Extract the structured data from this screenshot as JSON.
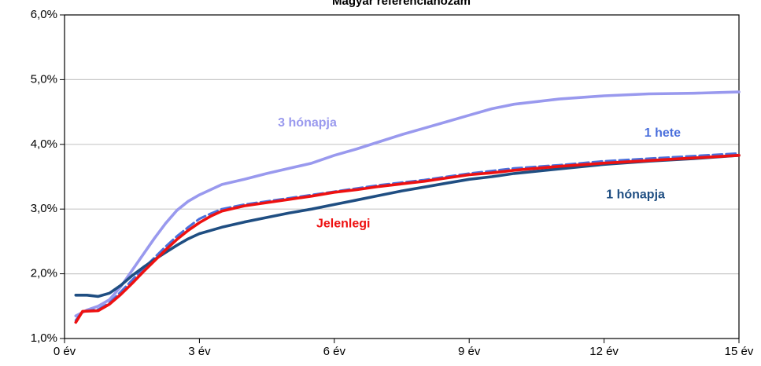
{
  "chart_data": {
    "type": "line",
    "title": "Magyar referenciahozam",
    "xlabel": "",
    "ylabel": "",
    "xlim": [
      0,
      15
    ],
    "ylim": [
      1.0,
      6.0
    ],
    "x_ticks": [
      {
        "value": 0,
        "label": "0 év"
      },
      {
        "value": 3,
        "label": "3 év"
      },
      {
        "value": 6,
        "label": "6 év"
      },
      {
        "value": 9,
        "label": "9 év"
      },
      {
        "value": 12,
        "label": "12 év"
      },
      {
        "value": 15,
        "label": "15 év"
      }
    ],
    "y_ticks": [
      {
        "value": 1.0,
        "label": "1,0%"
      },
      {
        "value": 2.0,
        "label": "2,0%"
      },
      {
        "value": 3.0,
        "label": "3,0%"
      },
      {
        "value": 4.0,
        "label": "4,0%"
      },
      {
        "value": 5.0,
        "label": "5,0%"
      },
      {
        "value": 6.0,
        "label": "6,0%"
      }
    ],
    "grid": {
      "horizontal": true,
      "vertical": false
    },
    "legend": "inline labels",
    "series": [
      {
        "name": "3 hónapja",
        "color": "#9999ee",
        "dash": false,
        "label_at": [
          5.4,
          4.33
        ],
        "points": [
          [
            0.25,
            1.35
          ],
          [
            0.5,
            1.44
          ],
          [
            0.75,
            1.5
          ],
          [
            1.0,
            1.6
          ],
          [
            1.25,
            1.8
          ],
          [
            1.5,
            2.05
          ],
          [
            1.75,
            2.3
          ],
          [
            2.0,
            2.55
          ],
          [
            2.25,
            2.78
          ],
          [
            2.5,
            2.98
          ],
          [
            2.75,
            3.12
          ],
          [
            3.0,
            3.22
          ],
          [
            3.25,
            3.3
          ],
          [
            3.5,
            3.38
          ],
          [
            4.0,
            3.46
          ],
          [
            4.5,
            3.55
          ],
          [
            5.0,
            3.63
          ],
          [
            5.5,
            3.71
          ],
          [
            6.0,
            3.83
          ],
          [
            6.5,
            3.93
          ],
          [
            7.0,
            4.04
          ],
          [
            7.5,
            4.15
          ],
          [
            8.0,
            4.25
          ],
          [
            8.5,
            4.35
          ],
          [
            9.0,
            4.45
          ],
          [
            9.5,
            4.55
          ],
          [
            10.0,
            4.62
          ],
          [
            11.0,
            4.7
          ],
          [
            12.0,
            4.75
          ],
          [
            13.0,
            4.78
          ],
          [
            14.0,
            4.79
          ],
          [
            15.0,
            4.81
          ]
        ]
      },
      {
        "name": "1 hete",
        "color": "#4a6fdc",
        "dash": true,
        "label_at": [
          13.3,
          4.17
        ],
        "points": [
          [
            0.25,
            1.28
          ],
          [
            0.4,
            1.42
          ],
          [
            0.75,
            1.45
          ],
          [
            1.0,
            1.55
          ],
          [
            1.25,
            1.72
          ],
          [
            1.5,
            1.9
          ],
          [
            1.75,
            2.08
          ],
          [
            2.0,
            2.25
          ],
          [
            2.25,
            2.42
          ],
          [
            2.5,
            2.58
          ],
          [
            2.75,
            2.72
          ],
          [
            3.0,
            2.85
          ],
          [
            3.25,
            2.93
          ],
          [
            3.5,
            3.0
          ],
          [
            4.0,
            3.07
          ],
          [
            4.5,
            3.12
          ],
          [
            5.0,
            3.17
          ],
          [
            5.5,
            3.22
          ],
          [
            6.0,
            3.27
          ],
          [
            6.5,
            3.32
          ],
          [
            7.0,
            3.37
          ],
          [
            7.5,
            3.41
          ],
          [
            8.0,
            3.45
          ],
          [
            8.5,
            3.5
          ],
          [
            9.0,
            3.55
          ],
          [
            9.5,
            3.59
          ],
          [
            10.0,
            3.63
          ],
          [
            11.0,
            3.68
          ],
          [
            12.0,
            3.74
          ],
          [
            13.0,
            3.78
          ],
          [
            14.0,
            3.82
          ],
          [
            15.0,
            3.86
          ]
        ]
      },
      {
        "name": "1 hónapja",
        "color": "#1f4e82",
        "dash": false,
        "label_at": [
          12.7,
          3.22
        ],
        "points": [
          [
            0.25,
            1.67
          ],
          [
            0.5,
            1.67
          ],
          [
            0.75,
            1.65
          ],
          [
            1.0,
            1.7
          ],
          [
            1.25,
            1.82
          ],
          [
            1.5,
            1.97
          ],
          [
            1.75,
            2.1
          ],
          [
            2.0,
            2.22
          ],
          [
            2.25,
            2.33
          ],
          [
            2.5,
            2.44
          ],
          [
            2.75,
            2.54
          ],
          [
            3.0,
            2.62
          ],
          [
            3.5,
            2.72
          ],
          [
            4.0,
            2.8
          ],
          [
            4.5,
            2.87
          ],
          [
            5.0,
            2.94
          ],
          [
            5.5,
            3.0
          ],
          [
            6.0,
            3.07
          ],
          [
            6.5,
            3.14
          ],
          [
            7.0,
            3.21
          ],
          [
            7.5,
            3.28
          ],
          [
            8.0,
            3.34
          ],
          [
            8.5,
            3.4
          ],
          [
            9.0,
            3.46
          ],
          [
            9.5,
            3.5
          ],
          [
            10.0,
            3.55
          ],
          [
            11.0,
            3.62
          ],
          [
            12.0,
            3.69
          ],
          [
            13.0,
            3.74
          ],
          [
            14.0,
            3.78
          ],
          [
            15.0,
            3.83
          ]
        ]
      },
      {
        "name": "Jelenlegi",
        "color": "#ee1111",
        "dash": false,
        "label_at": [
          6.2,
          2.77
        ],
        "points": [
          [
            0.25,
            1.25
          ],
          [
            0.4,
            1.42
          ],
          [
            0.75,
            1.43
          ],
          [
            1.0,
            1.53
          ],
          [
            1.25,
            1.68
          ],
          [
            1.5,
            1.85
          ],
          [
            1.75,
            2.03
          ],
          [
            2.0,
            2.2
          ],
          [
            2.25,
            2.37
          ],
          [
            2.5,
            2.53
          ],
          [
            2.75,
            2.67
          ],
          [
            3.0,
            2.79
          ],
          [
            3.25,
            2.89
          ],
          [
            3.5,
            2.97
          ],
          [
            4.0,
            3.05
          ],
          [
            4.5,
            3.1
          ],
          [
            5.0,
            3.15
          ],
          [
            5.5,
            3.2
          ],
          [
            6.0,
            3.26
          ],
          [
            6.5,
            3.3
          ],
          [
            7.0,
            3.35
          ],
          [
            7.5,
            3.39
          ],
          [
            8.0,
            3.43
          ],
          [
            8.5,
            3.48
          ],
          [
            9.0,
            3.53
          ],
          [
            9.5,
            3.56
          ],
          [
            10.0,
            3.6
          ],
          [
            11.0,
            3.66
          ],
          [
            12.0,
            3.71
          ],
          [
            13.0,
            3.75
          ],
          [
            14.0,
            3.79
          ],
          [
            15.0,
            3.83
          ]
        ]
      }
    ]
  }
}
